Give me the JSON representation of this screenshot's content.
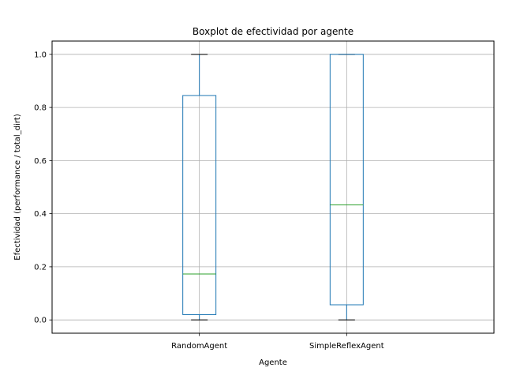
{
  "chart_data": {
    "type": "box",
    "title": "Boxplot de efectividad por agente",
    "xlabel": "Agente",
    "ylabel": "Efectividad (performance / total_dirt)",
    "categories": [
      "RandomAgent",
      "SimpleReflexAgent"
    ],
    "boxes": [
      {
        "name": "RandomAgent",
        "whisker_low": 0.0,
        "q1": 0.02,
        "median": 0.173,
        "q3": 0.845,
        "whisker_high": 1.0
      },
      {
        "name": "SimpleReflexAgent",
        "whisker_low": 0.0,
        "q1": 0.057,
        "median": 0.433,
        "q3": 1.0,
        "whisker_high": 1.0
      }
    ],
    "ylim": [
      -0.05,
      1.05
    ],
    "yticks": [
      "0.0",
      "0.2",
      "0.4",
      "0.6",
      "0.8",
      "1.0"
    ],
    "grid": true,
    "legend": "none",
    "colors": {
      "box": "#1f77b4",
      "median": "#2ca02c",
      "whisker_cap": "#000000",
      "grid": "#b0b0b0"
    }
  }
}
